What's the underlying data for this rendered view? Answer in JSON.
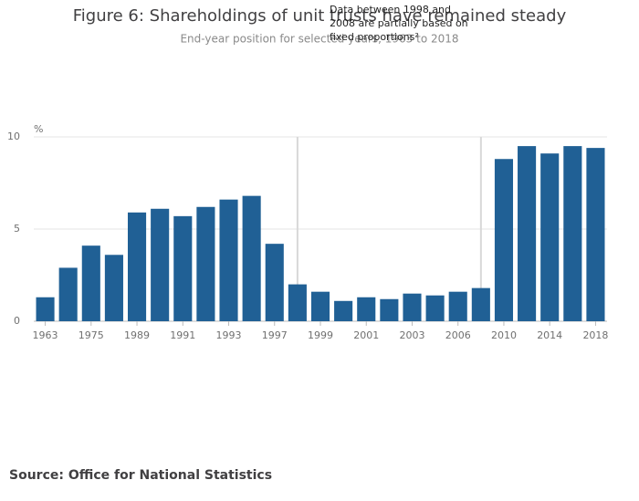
{
  "chart_data": {
    "type": "bar",
    "title": "Figure 6: Shareholdings of unit trusts have remained steady",
    "subtitle": "End-year position for selected years, 1963 to 2018",
    "y_label": "%",
    "annotation": [
      "Data between 1998 and",
      "2008 are partially based on",
      "fixed proportions²"
    ],
    "source": "Source: Office for National Statistics",
    "categories": [
      "1963",
      null,
      "1975",
      null,
      "1989",
      null,
      "1991",
      null,
      "1993",
      null,
      "1997",
      null,
      "1999",
      null,
      "2001",
      null,
      "2003",
      null,
      "2006",
      null,
      "2010",
      null,
      "2014",
      null,
      "2018"
    ],
    "values": [
      1.3,
      2.9,
      4.1,
      3.6,
      5.9,
      6.1,
      5.7,
      6.2,
      6.6,
      6.8,
      4.2,
      2.0,
      1.6,
      1.1,
      1.3,
      1.2,
      1.5,
      1.4,
      1.6,
      1.8,
      8.8,
      9.5,
      9.1,
      9.5,
      9.4
    ],
    "color": "#206095",
    "ylim": [
      0,
      10
    ],
    "yticks": [
      0,
      5,
      10
    ],
    "grid": true
  }
}
